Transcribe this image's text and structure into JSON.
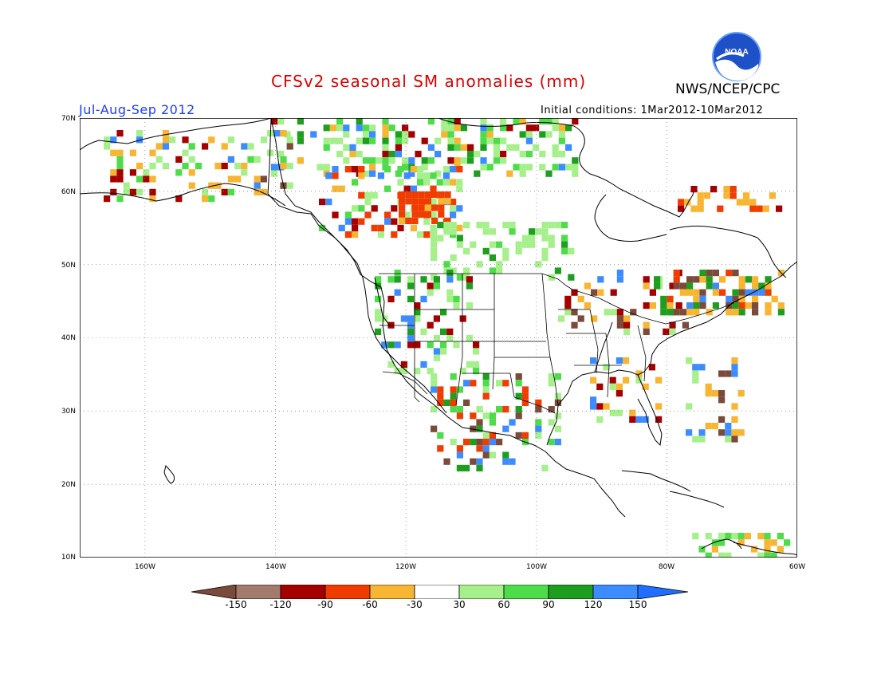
{
  "header": {
    "title": "CFSv2 seasonal SM anomalies (mm)",
    "org": "NWS/NCEP/CPC",
    "period": "Jul-Aug-Sep 2012",
    "initial_conditions": "Initial conditions: 1Mar2012-10Mar2012",
    "logo_text": "NOAA"
  },
  "map": {
    "lat_labels": [
      "70N",
      "60N",
      "50N",
      "40N",
      "30N",
      "20N",
      "10N"
    ],
    "lon_labels": [
      "160W",
      "140W",
      "120W",
      "100W",
      "80W",
      "60W"
    ],
    "lat_range": [
      10,
      70
    ],
    "lon_range": [
      -170,
      -60
    ]
  },
  "colorbar": {
    "labels": [
      "-150",
      "-120",
      "-90",
      "-60",
      "-30",
      "30",
      "60",
      "90",
      "120",
      "150"
    ],
    "colors": [
      "#7a4a3a",
      "#a37a6e",
      "#a50000",
      "#f03c00",
      "#f7b532",
      "#ffffff",
      "#a6f08c",
      "#4fdc4a",
      "#1e9e1e",
      "#3c8cff",
      "#1e6eff"
    ]
  }
}
